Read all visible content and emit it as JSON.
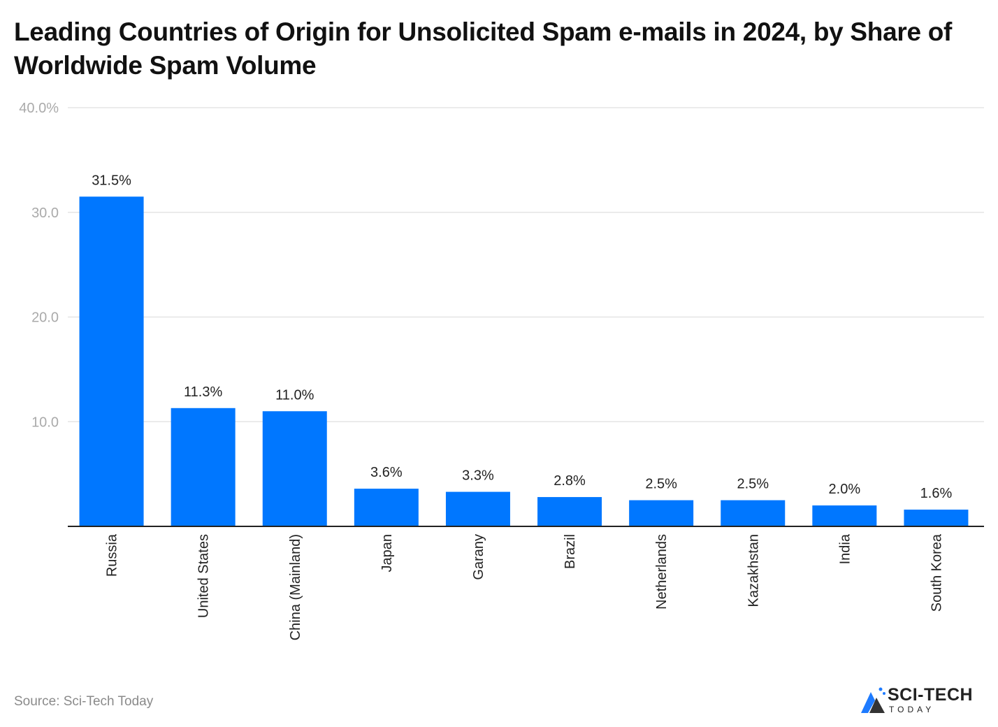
{
  "title": "Leading Countries of Origin for Unsolicited Spam e-mails in 2024, by Share of Worldwide Spam Volume",
  "source": "Source: Sci-Tech Today",
  "logo": {
    "main": "SCI-TECH",
    "sub": "TODAY"
  },
  "colors": {
    "bar": "#0077FF",
    "grid": "#e5e5e5",
    "axis": "#222222",
    "tick_label": "#aaaaaa"
  },
  "chart_data": {
    "type": "bar",
    "title": "Leading Countries of Origin for Unsolicited Spam e-mails in 2024, by Share of Worldwide Spam Volume",
    "xlabel": "",
    "ylabel": "",
    "ylim": [
      0,
      40
    ],
    "yticks": [
      10,
      20,
      30,
      40
    ],
    "ytick_labels": [
      "10.0",
      "20.0",
      "30.0",
      "40.0%"
    ],
    "grid": true,
    "categories": [
      "Russia",
      "United States",
      "China (Mainland)",
      "Japan",
      "Garany",
      "Brazil",
      "Netherlands",
      "Kazakhstan",
      "India",
      "South Korea"
    ],
    "values": [
      31.5,
      11.3,
      11.0,
      3.6,
      3.3,
      2.8,
      2.5,
      2.5,
      2.0,
      1.6
    ],
    "data_labels": [
      "31.5%",
      "11.3%",
      "11.0%",
      "3.6%",
      "3.3%",
      "2.8%",
      "2.5%",
      "2.5%",
      "2.0%",
      "1.6%"
    ]
  }
}
